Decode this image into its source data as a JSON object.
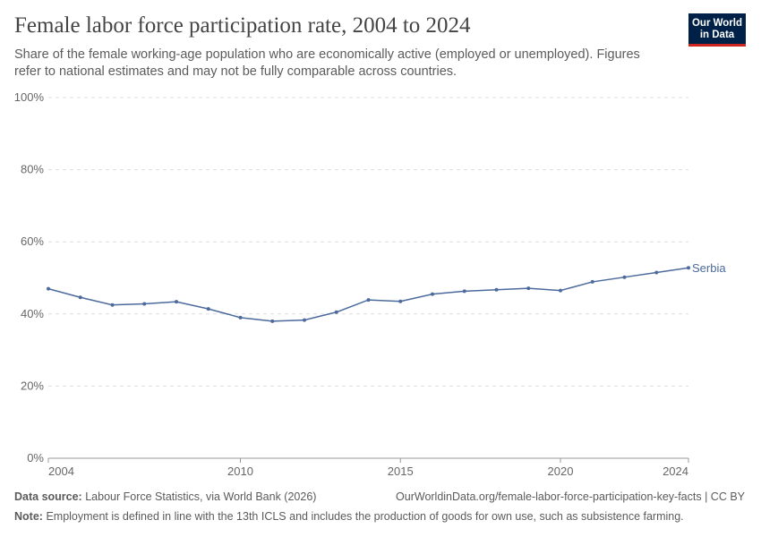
{
  "header": {
    "title": "Female labor force participation rate, 2004 to 2024",
    "subtitle": "Share of the female working-age population who are economically active (employed or unemployed). Figures refer to national estimates and may not be fully comparable across countries.",
    "logo_line1": "Our World",
    "logo_line2": "in Data"
  },
  "chart_data": {
    "type": "line",
    "title": "Female labor force participation rate, 2004 to 2024",
    "xlim": [
      2004,
      2024
    ],
    "ylim": [
      0,
      100
    ],
    "x_ticks": [
      2004,
      2010,
      2015,
      2020,
      2024
    ],
    "y_ticks": [
      "0%",
      "20%",
      "40%",
      "60%",
      "80%",
      "100%"
    ],
    "y_tick_values": [
      0,
      20,
      40,
      60,
      80,
      100
    ],
    "grid": "horizontal dashed",
    "x": [
      2004,
      2005,
      2006,
      2007,
      2008,
      2009,
      2010,
      2011,
      2012,
      2013,
      2014,
      2015,
      2016,
      2017,
      2018,
      2019,
      2020,
      2021,
      2022,
      2023,
      2024
    ],
    "series": [
      {
        "name": "Serbia",
        "color": "#4c6a9c",
        "values": [
          47.0,
          44.6,
          42.5,
          42.8,
          43.4,
          41.4,
          39.0,
          38.0,
          38.3,
          40.5,
          43.9,
          43.5,
          45.5,
          46.3,
          46.7,
          47.1,
          46.5,
          48.9,
          50.2,
          51.5,
          52.8
        ]
      }
    ]
  },
  "footer": {
    "source_label": "Data source:",
    "source": "Labour Force Statistics, via World Bank (2026)",
    "url": "OurWorldinData.org/female-labor-force-participation-key-facts | CC BY",
    "note_label": "Note:",
    "note": "Employment is defined in line with the 13th ICLS and includes the production of goods for own use, such as subsistence farming."
  }
}
